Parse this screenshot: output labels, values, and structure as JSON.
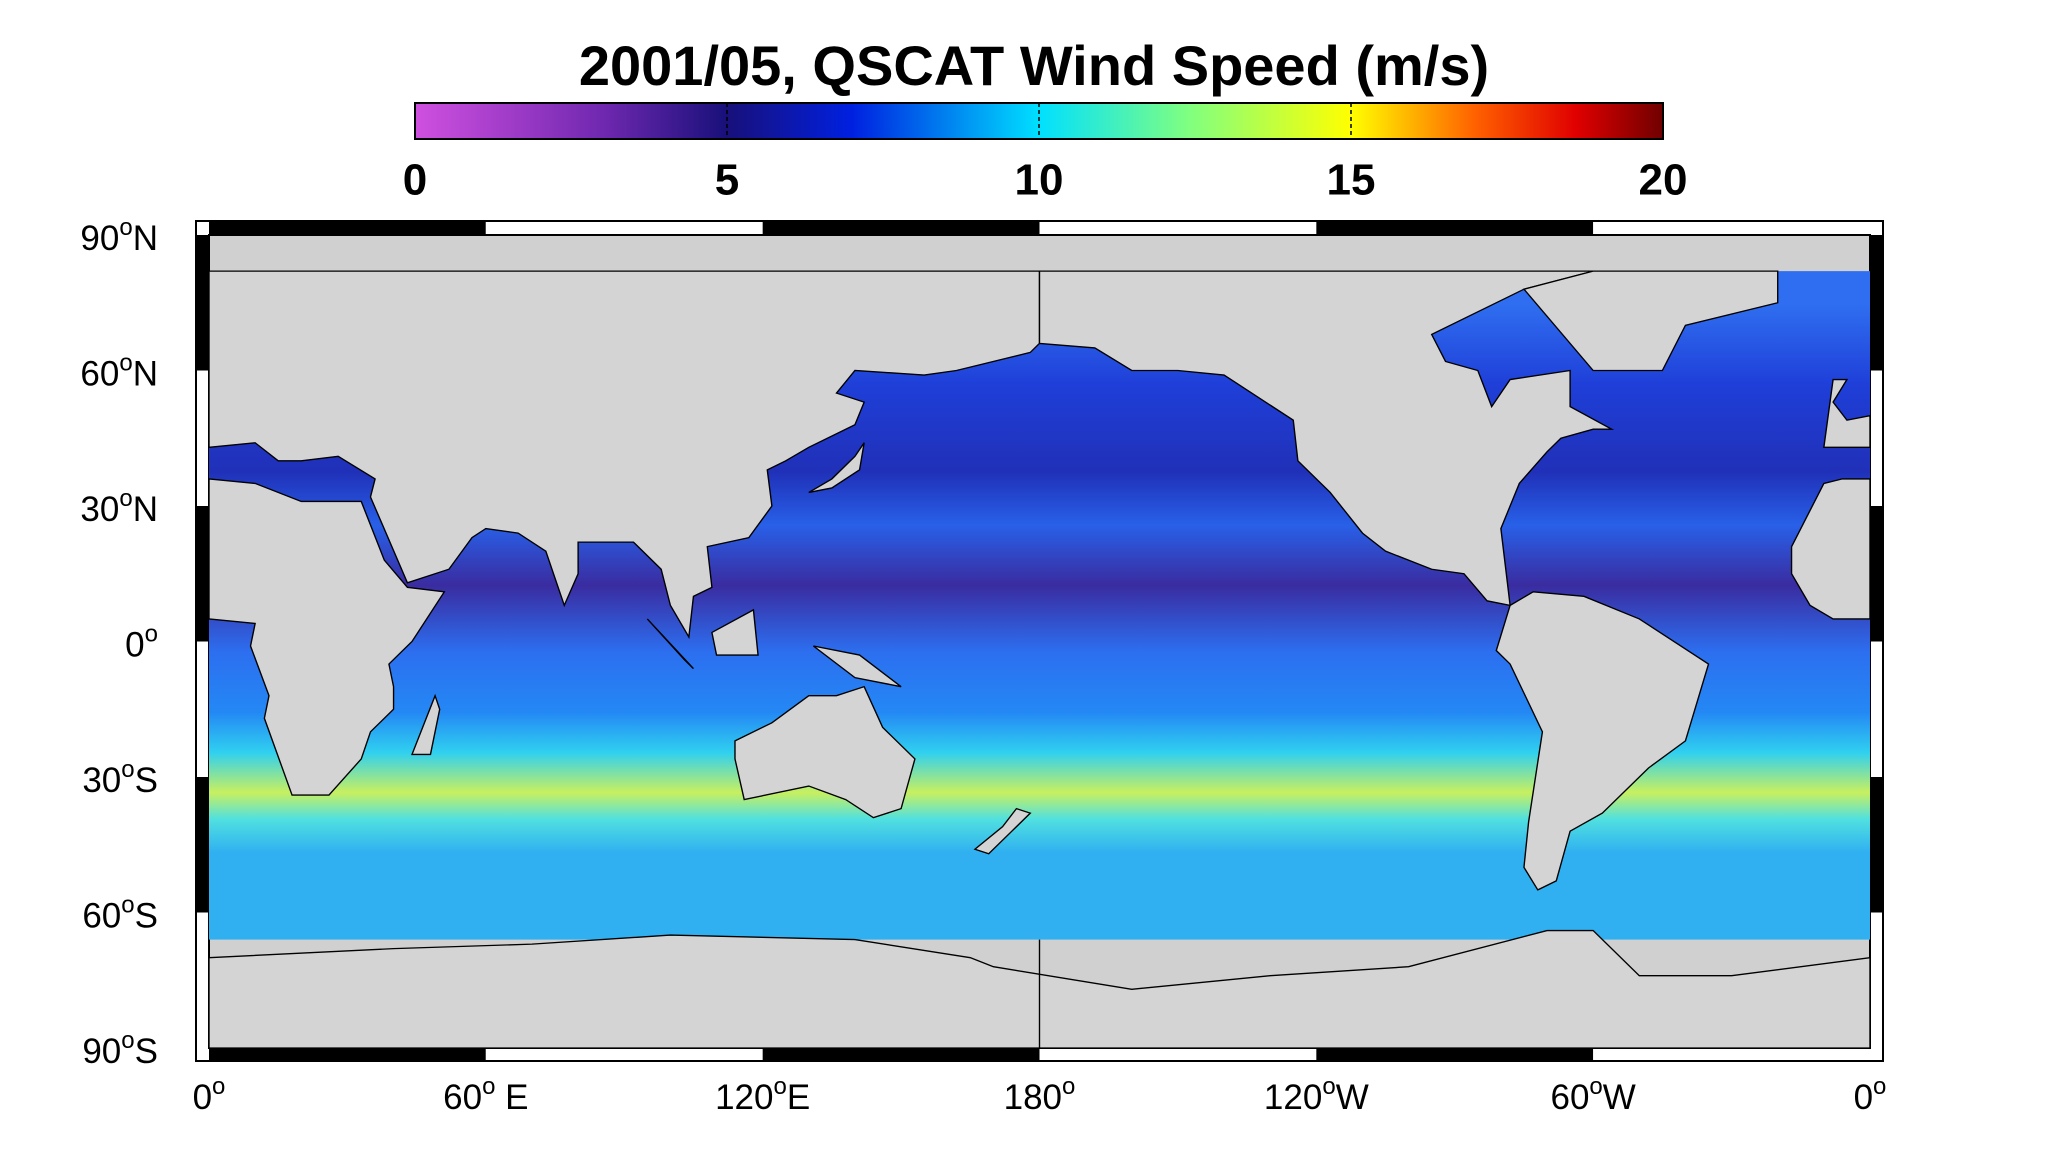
{
  "title": "2001/05,  QSCAT Wind Speed (m/s)",
  "colorbar": {
    "range": [
      0,
      20
    ],
    "ticks": [
      0,
      5,
      10,
      15,
      20
    ]
  },
  "lat_labels": [
    {
      "num": "90",
      "sup": "o",
      "suffix": "N"
    },
    {
      "num": "60",
      "sup": "o",
      "suffix": "N"
    },
    {
      "num": "30",
      "sup": "o",
      "suffix": "N"
    },
    {
      "num": "0",
      "sup": "o"
    },
    {
      "num": "30",
      "sup": "o",
      "suffix": "S"
    },
    {
      "num": "60",
      "sup": "o",
      "suffix": "S"
    },
    {
      "num": "90",
      "sup": "o",
      "suffix": "S"
    }
  ],
  "lon_labels": [
    {
      "num": "0",
      "sup": "o"
    },
    {
      "num": "60",
      "sup": "o",
      "suffix": " E"
    },
    {
      "num": "120",
      "sup": "o",
      "suffix": "E"
    },
    {
      "num": "180",
      "sup": "o"
    },
    {
      "num": "120",
      "sup": "o",
      "suffix": "W"
    },
    {
      "num": "60",
      "sup": "o",
      "suffix": "W"
    },
    {
      "num": "0",
      "sup": "o"
    }
  ]
}
